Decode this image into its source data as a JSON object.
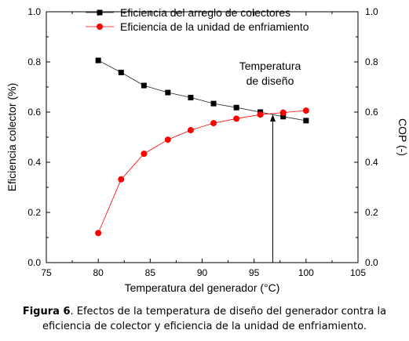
{
  "chart_data": {
    "type": "line",
    "xlabel": "Temperatura del generador (°C)",
    "ylabel": "Eficiencia colector (%)",
    "y2label": "COP (-)",
    "xlim": [
      75,
      105
    ],
    "ylim": [
      0.0,
      1.0
    ],
    "y2lim": [
      0.0,
      1.0
    ],
    "xticks": [
      "75",
      "80",
      "85",
      "90",
      "95",
      "100",
      "105"
    ],
    "yticks": [
      "0.0",
      "0.2",
      "0.4",
      "0.6",
      "0.8",
      "1.0"
    ],
    "y2ticks": [
      "0.0",
      "0.2",
      "0.4",
      "0.6",
      "0.8",
      "1.0"
    ],
    "grid": false,
    "legend": "top-left",
    "series": [
      {
        "name": "Eficiencia del arreglo de colectores",
        "marker": "square",
        "color": "#000000",
        "x": [
          80,
          82.2,
          84.4,
          86.7,
          88.9,
          91.1,
          93.3,
          95.6,
          97.8,
          100
        ],
        "y": [
          0.806,
          0.758,
          0.706,
          0.678,
          0.658,
          0.634,
          0.618,
          0.6,
          0.582,
          0.566
        ]
      },
      {
        "name": "Eficiencia de la unidad de enfriamiento",
        "marker": "circle",
        "color": "#ff0000",
        "x": [
          80,
          82.2,
          84.4,
          86.7,
          88.9,
          91.1,
          93.3,
          95.6,
          97.8,
          100
        ],
        "y": [
          0.118,
          0.332,
          0.434,
          0.49,
          0.528,
          0.556,
          0.574,
          0.59,
          0.598,
          0.606
        ]
      }
    ],
    "annotation": {
      "lines": [
        "Temperatura",
        "de diseño"
      ],
      "x": 96.8
    }
  },
  "caption": {
    "lead": "Figura 6",
    "text": ". Efectos de la temperatura de diseño del generador contra la eficiencia de colector y eficiencia de la unidad de enfriamiento."
  }
}
